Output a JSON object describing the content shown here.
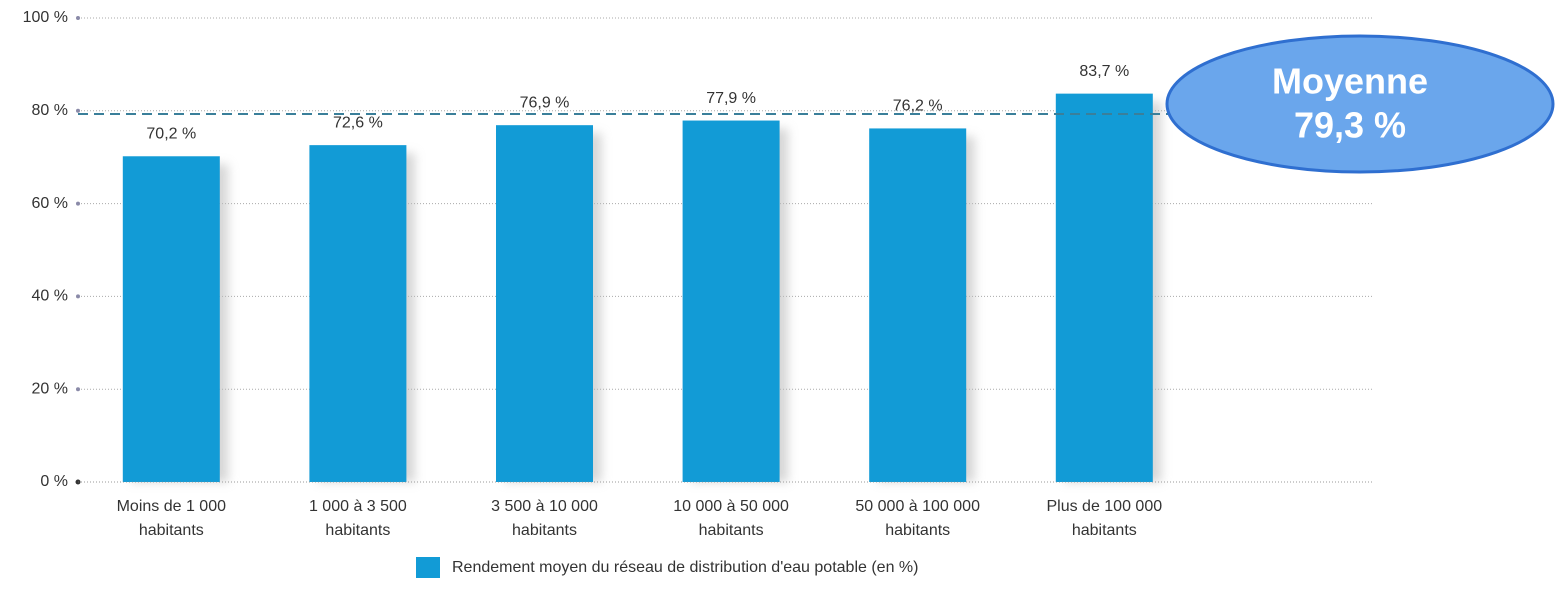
{
  "chart_data": {
    "type": "bar",
    "categories": [
      [
        "Moins de 1 000",
        "habitants"
      ],
      [
        "1 000 à 3 500",
        "habitants"
      ],
      [
        "3 500 à 10 000",
        "habitants"
      ],
      [
        "10 000 à 50 000",
        "habitants"
      ],
      [
        "50 000 à 100 000",
        "habitants"
      ],
      [
        "Plus de 100 000",
        "habitants"
      ]
    ],
    "series": [
      {
        "name": "Rendement moyen du réseau de distribution d'eau potable (en %)",
        "color": "#129bd6",
        "values": [
          70.2,
          72.6,
          76.9,
          77.9,
          76.2,
          83.7
        ],
        "value_labels": [
          "70,2 %",
          "72,6 %",
          "76,9 %",
          "77,9 %",
          "76,2 %",
          "83,7 %"
        ]
      }
    ],
    "ylim": [
      0,
      100
    ],
    "yticks": [
      {
        "value": 0,
        "label": "0 %"
      },
      {
        "value": 20,
        "label": "20 %"
      },
      {
        "value": 40,
        "label": "40 %"
      },
      {
        "value": 60,
        "label": "60 %"
      },
      {
        "value": 80,
        "label": "80 %"
      },
      {
        "value": 100,
        "label": "100 %"
      }
    ],
    "grid": true,
    "average": {
      "title": "Moyenne",
      "value": 79.3,
      "label": "79,3 %",
      "color": "#6aa6ec"
    }
  }
}
